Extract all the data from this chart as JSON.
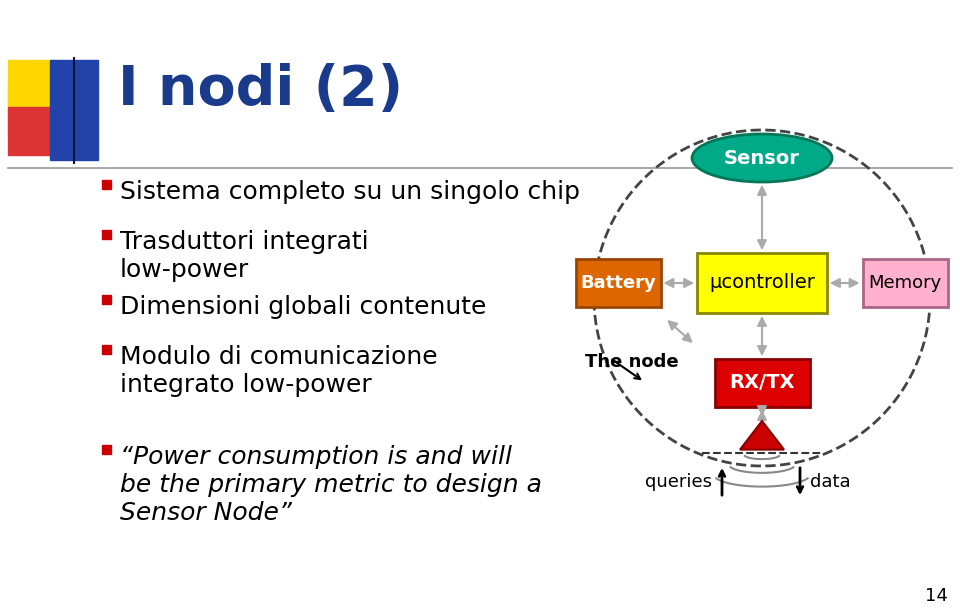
{
  "title": "I nodi (2)",
  "title_color": "#1A3A8C",
  "title_fontsize": 40,
  "bg_color": "#FFFFFF",
  "bullet_color": "#CC0000",
  "bullet_fontsize": 18,
  "bullets": [
    "Sistema completo su un singolo chip",
    "Trasduttori integrati\nlow-power",
    "Dimensioni globali contenute",
    "Modulo di comunicazione\nintegrato low-power"
  ],
  "quote_text": "“Power consumption is and will\nbe the primary metric to design a\nSensor Node”",
  "quote_fontsize": 18,
  "page_number": "14",
  "sensor_color": "#00AA88",
  "battery_color": "#DD6600",
  "controller_color": "#FFFF00",
  "memory_color": "#FFB0CC",
  "rxtx_color": "#DD0000",
  "dashed_circle_color": "#444444",
  "header_yellow": "#FFD700",
  "header_red": "#DD3333",
  "header_blue": "#2244AA",
  "header_pink": "#EE99AA"
}
